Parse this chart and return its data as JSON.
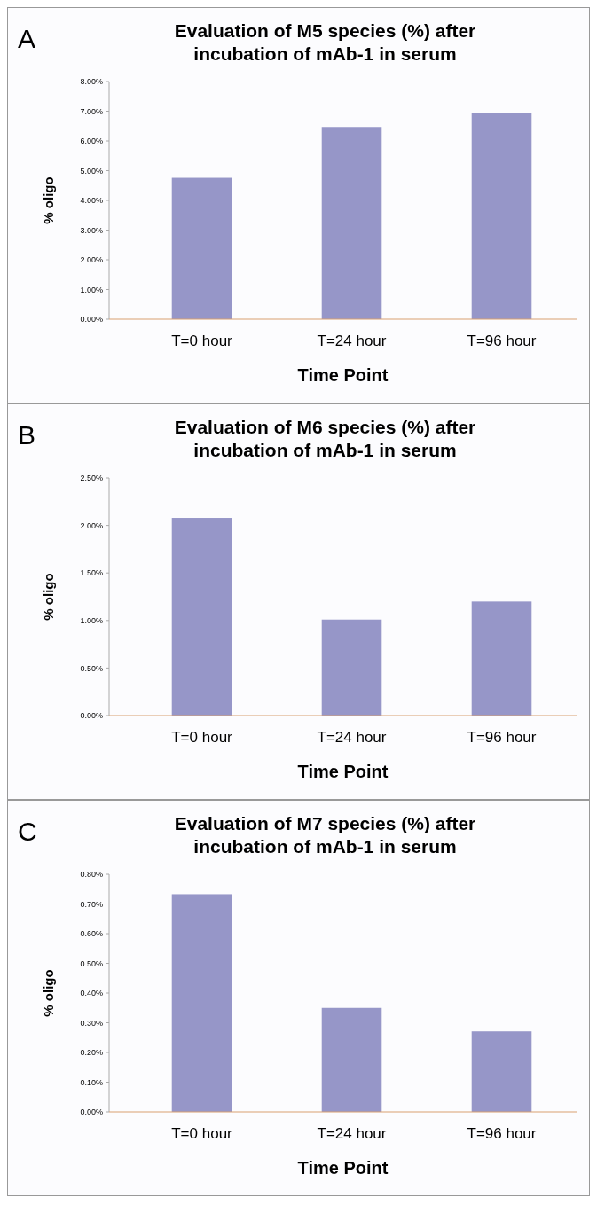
{
  "chart_data": [
    {
      "type": "bar",
      "title": "Evaluation of M5 species (%) after incubation of mAb-1 in serum",
      "xlabel": "Time Point",
      "ylabel": "% oligo",
      "annotations": [
        "A"
      ],
      "categories": [
        "T=0 hour",
        "T=24 hour",
        "T=96 hour"
      ],
      "values": [
        4.76,
        6.47,
        6.94
      ],
      "color": "#9696c8",
      "ylim": [
        0,
        8
      ],
      "yticks": [
        {
          "value": 0,
          "label": "0.00%"
        },
        {
          "value": 1,
          "label": "1.00%"
        },
        {
          "value": 2,
          "label": "2.00%"
        },
        {
          "value": 3,
          "label": "3.00%"
        },
        {
          "value": 4,
          "label": "4.00%"
        },
        {
          "value": 5,
          "label": "5.00%"
        },
        {
          "value": 6,
          "label": "6.00%"
        },
        {
          "value": 7,
          "label": "7.00%"
        },
        {
          "value": 8,
          "label": "8.00%"
        }
      ]
    },
    {
      "type": "bar",
      "title": "Evaluation of M6 species (%) after incubation of mAb-1 in serum",
      "xlabel": "Time Point",
      "ylabel": "% oligo",
      "annotations": [
        "B"
      ],
      "categories": [
        "T=0 hour",
        "T=24 hour",
        "T=96 hour"
      ],
      "values": [
        2.08,
        1.01,
        1.2
      ],
      "color": "#9696c8",
      "ylim": [
        0,
        2.5
      ],
      "yticks": [
        {
          "value": 0,
          "label": "0.00%"
        },
        {
          "value": 0.5,
          "label": "0.50%"
        },
        {
          "value": 1,
          "label": "1.00%"
        },
        {
          "value": 1.5,
          "label": "1.50%"
        },
        {
          "value": 2,
          "label": "2.00%"
        },
        {
          "value": 2.5,
          "label": "2.50%"
        }
      ]
    },
    {
      "type": "bar",
      "title": "Evaluation of M7 species (%) after incubation of mAb-1 in serum",
      "xlabel": "Time Point",
      "ylabel": "% oligo",
      "annotations": [
        "C"
      ],
      "categories": [
        "T=0 hour",
        "T=24 hour",
        "T=96 hour"
      ],
      "values": [
        0.733,
        0.35,
        0.271
      ],
      "color": "#9696c8",
      "ylim": [
        0,
        0.8
      ],
      "yticks": [
        {
          "value": 0,
          "label": "0.00%"
        },
        {
          "value": 0.1,
          "label": "0.10%"
        },
        {
          "value": 0.2,
          "label": "0.20%"
        },
        {
          "value": 0.3,
          "label": "0.30%"
        },
        {
          "value": 0.4,
          "label": "0.40%"
        },
        {
          "value": 0.5,
          "label": "0.50%"
        },
        {
          "value": 0.6,
          "label": "0.60%"
        },
        {
          "value": 0.7,
          "label": "0.70%"
        },
        {
          "value": 0.8,
          "label": "0.80%"
        }
      ]
    }
  ]
}
